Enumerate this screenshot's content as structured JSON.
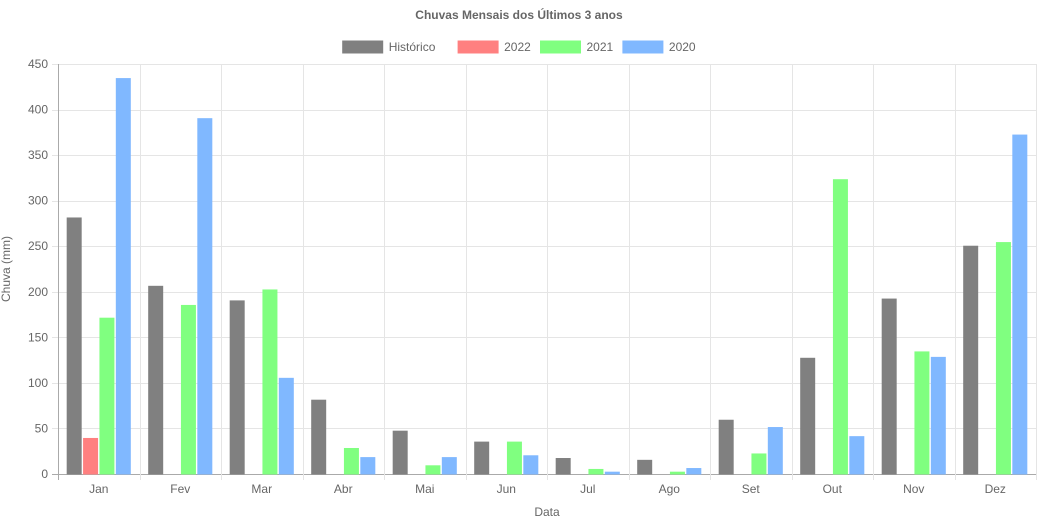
{
  "chart_data": {
    "type": "bar",
    "title": "Chuvas Mensais dos Últimos 3 anos",
    "xlabel": "Data",
    "ylabel": "Chuva (mm)",
    "ylim": [
      0,
      450
    ],
    "yticks": [
      0,
      50,
      100,
      150,
      200,
      250,
      300,
      350,
      400,
      450
    ],
    "grid": true,
    "legend_position": "top",
    "categories": [
      "Jan",
      "Fev",
      "Mar",
      "Abr",
      "Mai",
      "Jun",
      "Jul",
      "Ago",
      "Set",
      "Out",
      "Nov",
      "Dez"
    ],
    "series": [
      {
        "name": "Histórico",
        "color": "#808080",
        "values": [
          281,
          206,
          190,
          81,
          47,
          35,
          17,
          15,
          59,
          127,
          192,
          250
        ]
      },
      {
        "name": "2022",
        "color": "#ff8080",
        "values": [
          39,
          null,
          null,
          null,
          null,
          null,
          null,
          null,
          null,
          null,
          null,
          null
        ]
      },
      {
        "name": "2021",
        "color": "#80ff80",
        "values": [
          171,
          185,
          202,
          28,
          9,
          35,
          5,
          2,
          22,
          323,
          134,
          254
        ]
      },
      {
        "name": "2020",
        "color": "#80b8ff",
        "values": [
          434,
          390,
          105,
          18,
          18,
          20,
          2,
          6,
          51,
          41,
          128,
          372
        ]
      }
    ]
  }
}
